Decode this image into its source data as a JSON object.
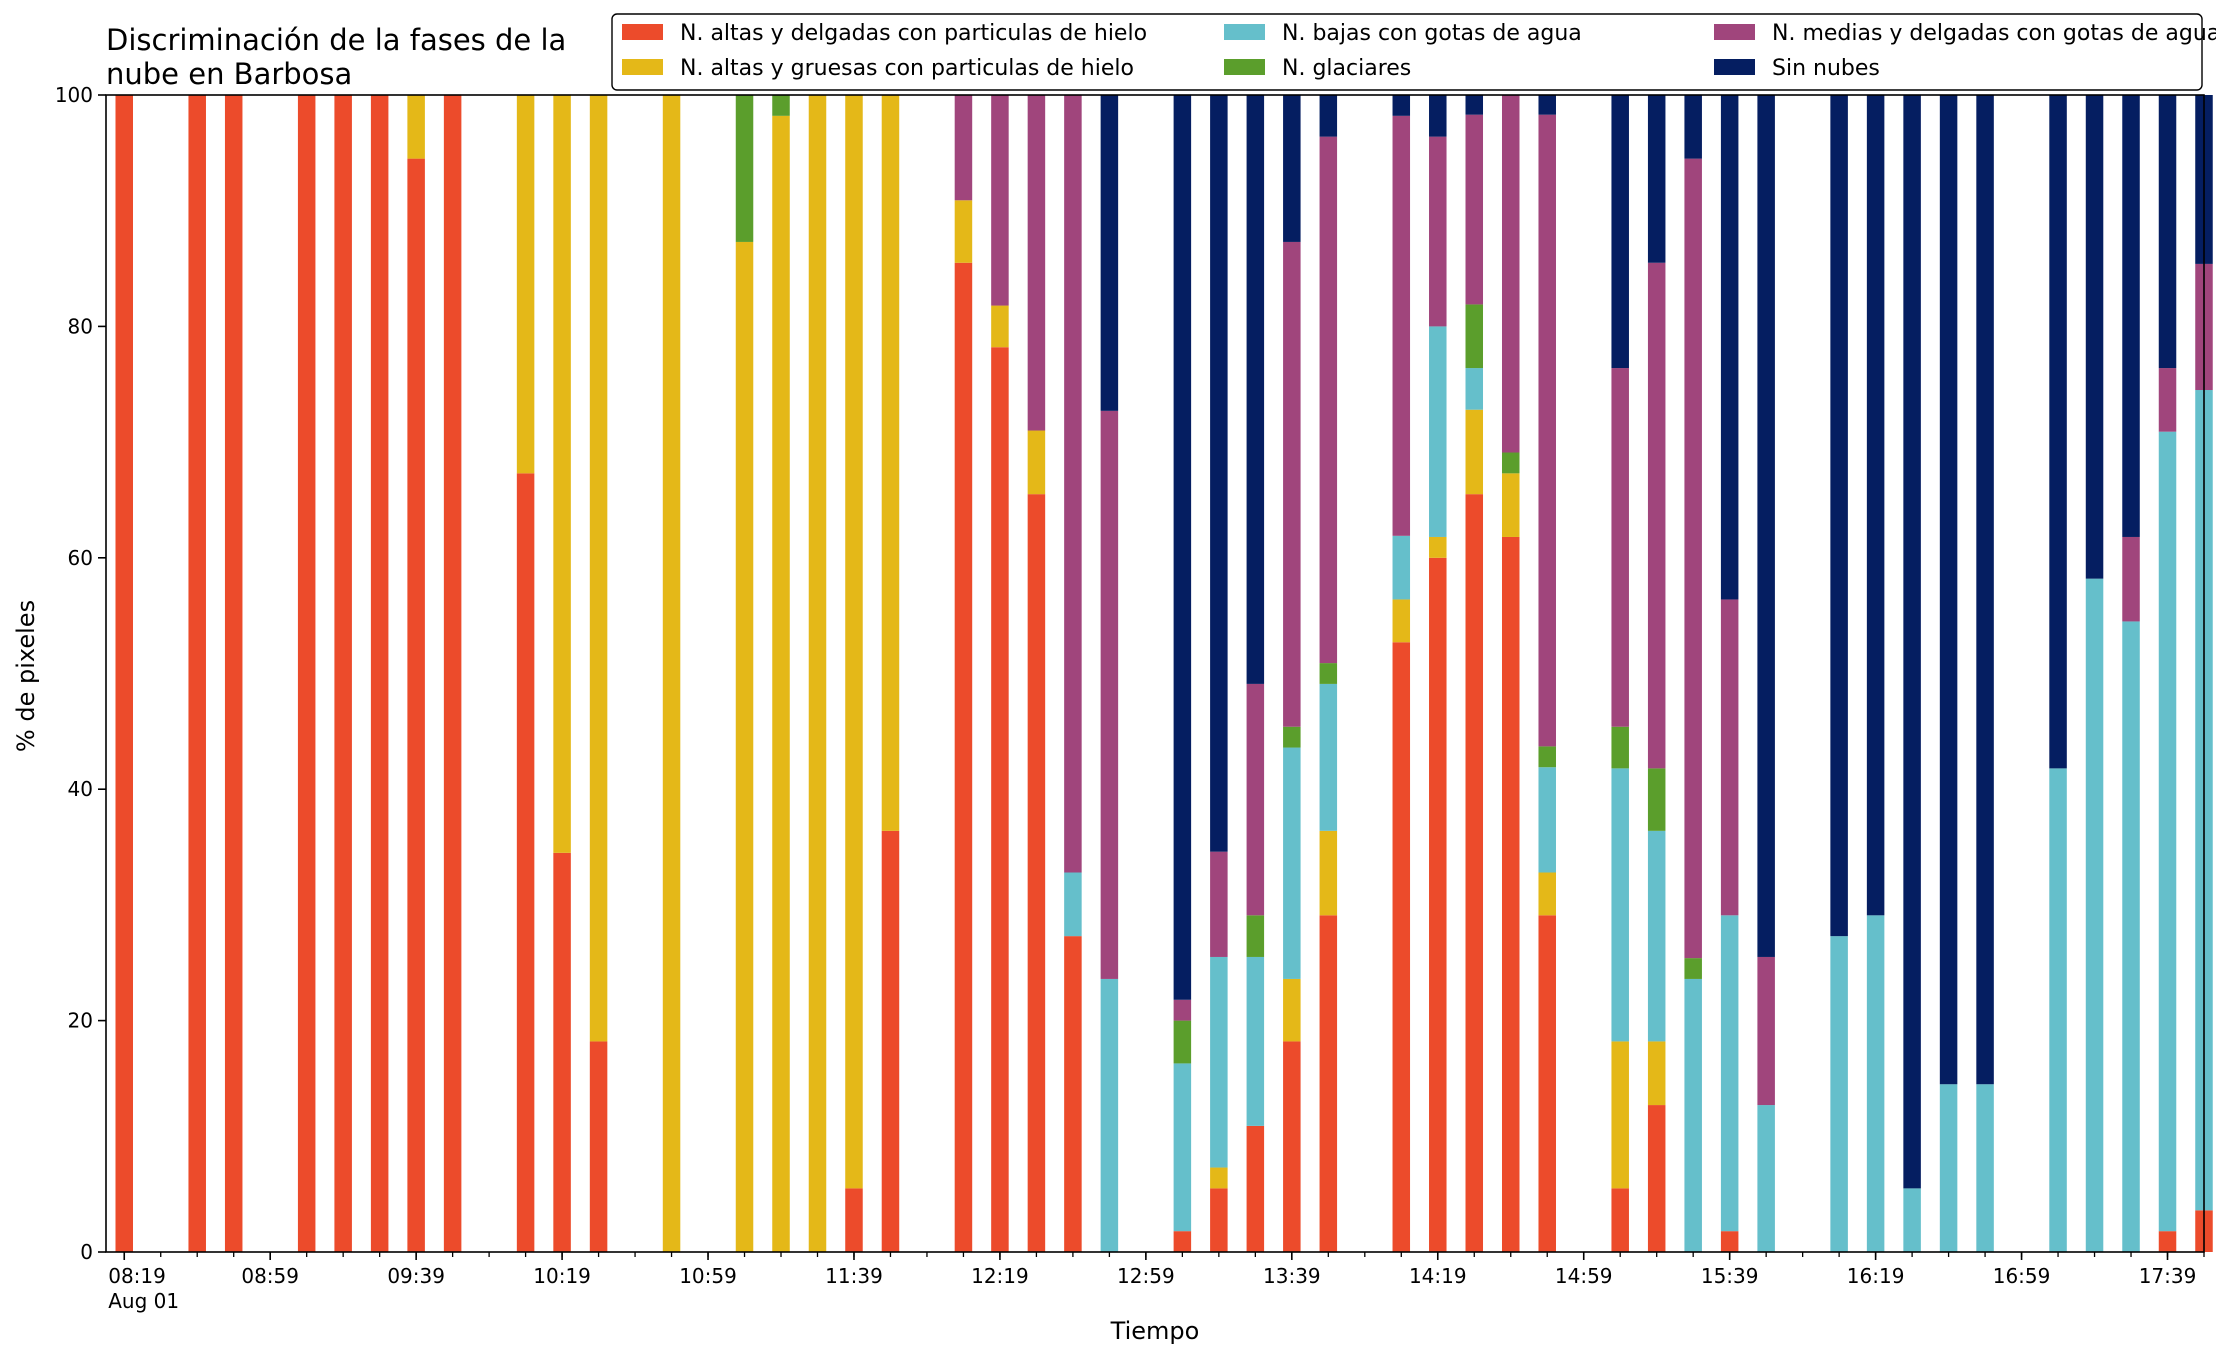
{
  "chart_data": {
    "type": "bar",
    "stacked": true,
    "title_lines": [
      "Discriminación de la fases de la",
      "nube en Barbosa"
    ],
    "xlabel": "Tiempo",
    "ylabel": "% de pixeles",
    "ylim": [
      0,
      100
    ],
    "yticks": [
      "0",
      "20",
      "40",
      "60",
      "80",
      "100"
    ],
    "xlim_minutes": [
      494,
      1069
    ],
    "xticks_major": [
      {
        "minutes": 499,
        "label": "08:19",
        "sublabel": "Aug 01"
      },
      {
        "minutes": 539,
        "label": "08:59"
      },
      {
        "minutes": 579,
        "label": "09:39"
      },
      {
        "minutes": 619,
        "label": "10:19"
      },
      {
        "minutes": 659,
        "label": "10:59"
      },
      {
        "minutes": 699,
        "label": "11:39"
      },
      {
        "minutes": 739,
        "label": "12:19"
      },
      {
        "minutes": 779,
        "label": "12:59"
      },
      {
        "minutes": 819,
        "label": "13:39"
      },
      {
        "minutes": 859,
        "label": "14:19"
      },
      {
        "minutes": 899,
        "label": "14:59"
      },
      {
        "minutes": 939,
        "label": "15:39"
      },
      {
        "minutes": 979,
        "label": "16:19"
      },
      {
        "minutes": 1019,
        "label": "16:59"
      },
      {
        "minutes": 1059,
        "label": "17:39"
      }
    ],
    "xticks_minor_step_minutes": 10,
    "bar_width_minutes": 4.8,
    "legend_position": "top-right",
    "legend_columns": 3,
    "series": [
      {
        "key": "altas_delgadas",
        "name": "N. altas y delgadas con particulas de hielo",
        "color": "#ec4b2b"
      },
      {
        "key": "altas_gruesas",
        "name": "N. altas y gruesas con particulas de hielo",
        "color": "#e4b818"
      },
      {
        "key": "bajas",
        "name": "N. bajas con gotas de agua",
        "color": "#65bfcb"
      },
      {
        "key": "glaciares",
        "name": "N. glaciares",
        "color": "#5b9e2c"
      },
      {
        "key": "medias",
        "name": "N. medias y delgadas con gotas de agua",
        "color": "#a0457c"
      },
      {
        "key": "sin_nubes",
        "name": "Sin nubes",
        "color": "#051e61"
      }
    ],
    "legend_layout": [
      [
        "altas_delgadas",
        "altas_gruesas"
      ],
      [
        "bajas",
        "glaciares"
      ],
      [
        "medias",
        "sin_nubes"
      ]
    ],
    "stack_order": [
      "altas_delgadas",
      "altas_gruesas",
      "bajas",
      "glaciares",
      "medias",
      "sin_nubes"
    ],
    "bars": [
      {
        "x": "08:19",
        "values": [
          100,
          0,
          0,
          0,
          0,
          0
        ]
      },
      {
        "x": "08:39",
        "values": [
          100,
          0,
          0,
          0,
          0,
          0
        ]
      },
      {
        "x": "08:49",
        "values": [
          100,
          0,
          0,
          0,
          0,
          0
        ]
      },
      {
        "x": "09:09",
        "values": [
          100,
          0,
          0,
          0,
          0,
          0
        ]
      },
      {
        "x": "09:19",
        "values": [
          100,
          0,
          0,
          0,
          0,
          0
        ]
      },
      {
        "x": "09:29",
        "values": [
          100,
          0,
          0,
          0,
          0,
          0
        ]
      },
      {
        "x": "09:39",
        "values": [
          94.5,
          5.5,
          0,
          0,
          0,
          0
        ]
      },
      {
        "x": "09:49",
        "values": [
          100,
          0,
          0,
          0,
          0,
          0
        ]
      },
      {
        "x": "10:09",
        "values": [
          67.3,
          32.7,
          0,
          0,
          0,
          0
        ]
      },
      {
        "x": "10:19",
        "values": [
          34.5,
          65.5,
          0,
          0,
          0,
          0
        ]
      },
      {
        "x": "10:29",
        "values": [
          18.2,
          81.8,
          0,
          0,
          0,
          0
        ]
      },
      {
        "x": "10:49",
        "values": [
          0,
          100,
          0,
          0,
          0,
          0
        ]
      },
      {
        "x": "11:09",
        "values": [
          0,
          87.3,
          0,
          12.7,
          0,
          0
        ]
      },
      {
        "x": "11:19",
        "values": [
          0,
          98.2,
          0,
          1.8,
          0,
          0
        ]
      },
      {
        "x": "11:29",
        "values": [
          0,
          100,
          0,
          0,
          0,
          0
        ]
      },
      {
        "x": "11:39",
        "values": [
          5.5,
          94.5,
          0,
          0,
          0,
          0
        ]
      },
      {
        "x": "11:49",
        "values": [
          36.4,
          63.6,
          0,
          0,
          0,
          0
        ]
      },
      {
        "x": "12:09",
        "values": [
          85.5,
          5.4,
          0,
          0,
          9.1,
          0
        ]
      },
      {
        "x": "12:19",
        "values": [
          78.2,
          3.6,
          0,
          0,
          18.2,
          0
        ]
      },
      {
        "x": "12:29",
        "values": [
          65.5,
          5.5,
          0,
          0,
          29,
          0
        ]
      },
      {
        "x": "12:39",
        "values": [
          27.3,
          0,
          5.5,
          0,
          67.2,
          0
        ]
      },
      {
        "x": "12:49",
        "values": [
          0,
          0,
          23.6,
          0,
          49.1,
          27.3
        ]
      },
      {
        "x": "13:09",
        "values": [
          1.8,
          0,
          14.5,
          3.7,
          1.8,
          78.2
        ]
      },
      {
        "x": "13:19",
        "values": [
          5.5,
          1.8,
          18.2,
          0,
          9.1,
          65.4
        ]
      },
      {
        "x": "13:29",
        "values": [
          10.9,
          0,
          14.6,
          3.6,
          20,
          50.9
        ]
      },
      {
        "x": "13:39",
        "values": [
          18.2,
          5.4,
          20,
          1.8,
          41.9,
          12.7
        ]
      },
      {
        "x": "13:49",
        "values": [
          29.1,
          7.3,
          12.7,
          1.8,
          45.5,
          3.6
        ]
      },
      {
        "x": "14:09",
        "values": [
          52.7,
          3.7,
          5.5,
          0,
          36.3,
          1.8
        ]
      },
      {
        "x": "14:19",
        "values": [
          60,
          1.8,
          18.2,
          0,
          16.4,
          3.6
        ]
      },
      {
        "x": "14:29",
        "values": [
          65.5,
          7.3,
          3.6,
          5.5,
          16.4,
          1.7
        ]
      },
      {
        "x": "14:39",
        "values": [
          61.8,
          5.5,
          0,
          1.8,
          30.9,
          0
        ]
      },
      {
        "x": "14:49",
        "values": [
          29.1,
          3.7,
          9.1,
          1.8,
          54.6,
          1.7
        ]
      },
      {
        "x": "15:09",
        "values": [
          5.5,
          12.7,
          23.6,
          3.6,
          31,
          23.6
        ]
      },
      {
        "x": "15:19",
        "values": [
          12.7,
          5.5,
          18.2,
          5.4,
          43.7,
          14.5
        ]
      },
      {
        "x": "15:29",
        "values": [
          0,
          0,
          23.6,
          1.8,
          69.1,
          5.5
        ]
      },
      {
        "x": "15:39",
        "values": [
          1.8,
          0,
          27.3,
          0,
          27.3,
          43.6
        ]
      },
      {
        "x": "15:49",
        "values": [
          0,
          0,
          12.7,
          0,
          12.8,
          74.5
        ]
      },
      {
        "x": "16:09",
        "values": [
          0,
          0,
          27.3,
          0,
          0,
          72.7
        ]
      },
      {
        "x": "16:19",
        "values": [
          0,
          0,
          29.1,
          0,
          0,
          70.9
        ]
      },
      {
        "x": "16:29",
        "values": [
          0,
          0,
          5.5,
          0,
          0,
          94.5
        ]
      },
      {
        "x": "16:39",
        "values": [
          0,
          0,
          14.5,
          0,
          0,
          85.5
        ]
      },
      {
        "x": "16:49",
        "values": [
          0,
          0,
          14.5,
          0,
          0,
          85.5
        ]
      },
      {
        "x": "17:09",
        "values": [
          0,
          0,
          41.8,
          0,
          0,
          58.2
        ]
      },
      {
        "x": "17:19",
        "values": [
          0,
          0,
          58.2,
          0,
          0,
          41.8
        ]
      },
      {
        "x": "17:29",
        "values": [
          0,
          0,
          54.5,
          0,
          7.3,
          38.2
        ]
      },
      {
        "x": "17:39",
        "values": [
          1.8,
          0,
          69.1,
          0,
          5.5,
          23.6
        ]
      },
      {
        "x": "17:49",
        "values": [
          3.6,
          0,
          70.9,
          0,
          10.9,
          14.6
        ]
      }
    ]
  }
}
